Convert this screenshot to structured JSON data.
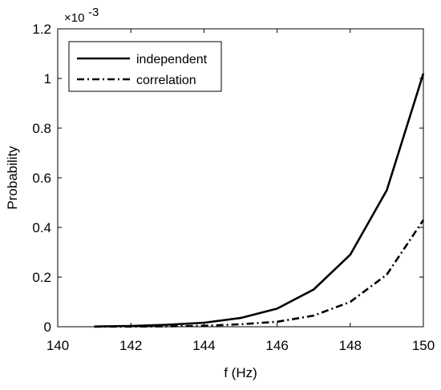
{
  "chart_data": {
    "type": "line",
    "xlabel": "f (Hz)",
    "ylabel": "Probability",
    "xlim": [
      140,
      150
    ],
    "ylim": [
      0,
      0.0012
    ],
    "x_ticks": [
      140,
      142,
      144,
      146,
      148,
      150
    ],
    "x_tick_labels": [
      "140",
      "142",
      "144",
      "146",
      "148",
      "150"
    ],
    "y_ticks": [
      0,
      0.0002,
      0.0004,
      0.0006,
      0.0008,
      0.001,
      0.0012
    ],
    "y_tick_labels": [
      "0",
      "0.2",
      "0.4",
      "0.6",
      "0.8",
      "1",
      "1.2"
    ],
    "y_exponent_base": "×10",
    "y_exponent_power": "-3",
    "legend_position": "top-left",
    "grid": false,
    "x": [
      141,
      142,
      143,
      144,
      145,
      146,
      147,
      148,
      149,
      150
    ],
    "series": [
      {
        "name": "independent",
        "style": "solid",
        "color": "#000000",
        "values": [
          1e-06,
          3e-06,
          8e-06,
          1.6e-05,
          3.5e-05,
          7.3e-05,
          0.00015,
          0.00029,
          0.00055,
          0.00102
        ]
      },
      {
        "name": "correlation",
        "style": "dash-dot",
        "color": "#000000",
        "values": [
          2e-07,
          5e-07,
          1.5e-06,
          4e-06,
          1e-05,
          2e-05,
          4.5e-05,
          0.0001,
          0.00021,
          0.00043
        ]
      }
    ]
  }
}
